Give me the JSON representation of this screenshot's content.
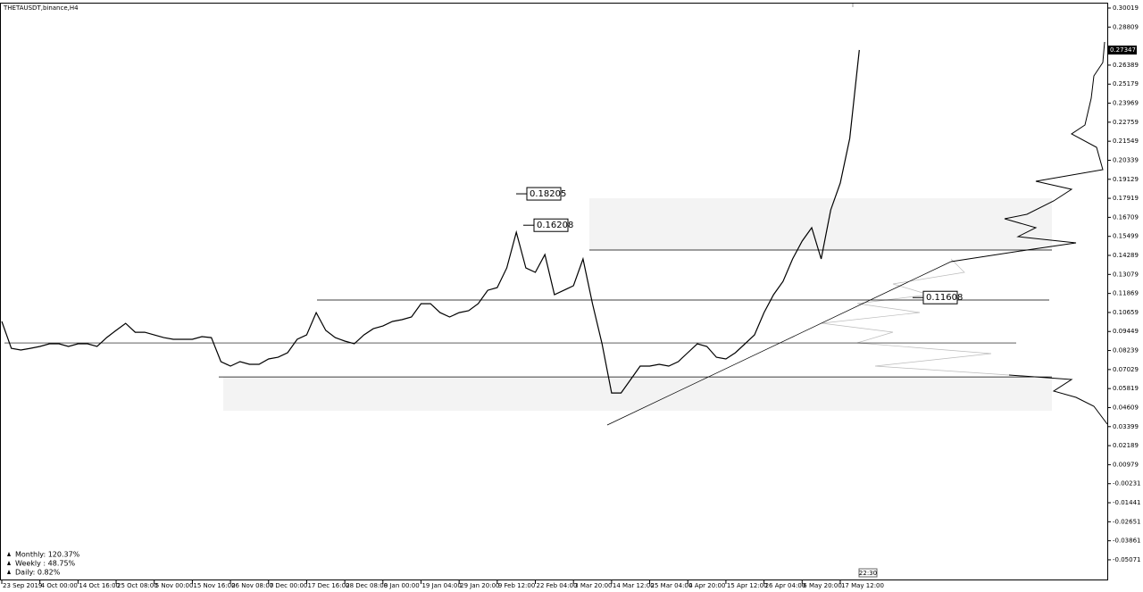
{
  "chart_data": {
    "type": "line",
    "title": "THETAUSDT,binance,H4",
    "color": "#000000",
    "categories": [
      "23 Sep 2019",
      null,
      null,
      null,
      "4 Oct 00:00",
      null,
      null,
      null,
      "14 Oct 16:00",
      null,
      null,
      null,
      "25 Oct 08:00",
      null,
      null,
      null,
      "5 Nov 00:00",
      null,
      null,
      null,
      "15 Nov 16:00",
      null,
      null,
      null,
      "26 Nov 08:00",
      null,
      null,
      null,
      "7 Dec 00:00",
      null,
      null,
      null,
      "17 Dec 16:00",
      null,
      null,
      null,
      "28 Dec 08:00",
      null,
      null,
      null,
      "8 Jan 00:00",
      null,
      null,
      null,
      "19 Jan 04:00",
      null,
      null,
      null,
      "29 Jan 20:00",
      null,
      null,
      null,
      "9 Feb 12:00",
      null,
      null,
      null,
      "22 Feb 04:00",
      null,
      null,
      null,
      "3 Mar 20:00",
      null,
      null,
      null,
      "14 Mar 12:00",
      null,
      null,
      null,
      "25 Mar 04:00",
      null,
      null,
      null,
      "4 Apr 20:00",
      null,
      null,
      null,
      "15 Apr 12:00",
      null,
      null,
      null,
      "26 Apr 04:00",
      null,
      null,
      null,
      "6 May 20:00",
      null,
      null,
      null,
      "17 May 12:00",
      null,
      null
    ],
    "values": [
      0.1009,
      0.0838,
      0.0827,
      0.0838,
      0.085,
      0.0867,
      0.0867,
      0.085,
      0.0867,
      0.0867,
      0.085,
      0.0906,
      0.0952,
      0.0997,
      0.094,
      0.094,
      0.0923,
      0.0906,
      0.0895,
      0.0895,
      0.0895,
      0.0912,
      0.0906,
      0.0753,
      0.0725,
      0.0753,
      0.0736,
      0.0736,
      0.077,
      0.0781,
      0.081,
      0.0895,
      0.0923,
      0.1065,
      0.0952,
      0.0906,
      0.0884,
      0.0867,
      0.0923,
      0.0963,
      0.098,
      0.1009,
      0.102,
      0.1037,
      0.1122,
      0.1122,
      0.1065,
      0.1037,
      0.1065,
      0.1077,
      0.1122,
      0.1207,
      0.1224,
      0.1349,
      0.1576,
      0.1349,
      0.1321,
      0.1434,
      0.1179,
      0.1207,
      0.1236,
      0.1406,
      0.1122,
      0.0867,
      0.0554,
      0.0554,
      0.0639,
      0.0725,
      0.0725,
      0.0736,
      0.0725,
      0.0753,
      0.081,
      0.0867,
      0.085,
      0.0781,
      0.077,
      0.081,
      0.0867,
      0.0923,
      0.1065,
      0.1179,
      0.1264,
      0.1406,
      0.152,
      0.1605,
      0.1406,
      0.1718,
      0.1889,
      0.2173,
      0.2735
    ],
    "ylim": [
      -0.0638,
      0.3036
    ],
    "yticks": [
      0.30019,
      0.28809,
      0.26389,
      0.25179,
      0.23969,
      0.22759,
      0.21549,
      0.20339,
      0.19129,
      0.17919,
      0.16709,
      0.15499,
      0.14289,
      0.13079,
      0.11869,
      0.10659,
      0.09449,
      0.08239,
      0.07029,
      0.05819,
      0.04609,
      0.03399,
      0.02189,
      0.00979,
      -0.00231,
      -0.01441,
      -0.02651,
      -0.03861,
      -0.05071
    ],
    "current_price": 0.27347,
    "annotations": [
      {
        "label": "0.18205",
        "value": 0.18205
      },
      {
        "label": "0.16208",
        "value": 0.16208
      },
      {
        "label": "0.11608",
        "value": 0.11608
      }
    ],
    "levels": [
      0.1463,
      0.1145,
      0.0872,
      0.0656
    ],
    "zones": [
      [
        0.1792,
        0.1463
      ],
      [
        0.0656,
        0.0441
      ]
    ],
    "stats": [
      "Monthly: 120.37%",
      "Weekly : 48.75%",
      "Daily: 0.82%"
    ],
    "clock": "22:30"
  }
}
